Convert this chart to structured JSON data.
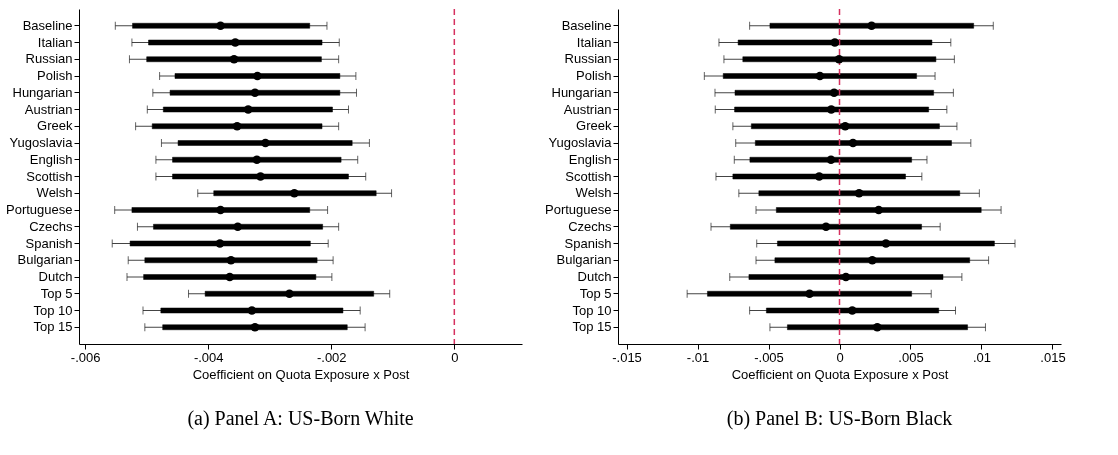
{
  "chart_data": [
    {
      "type": "box",
      "orientation": "horizontal",
      "title": "(a) Panel A: US-Born White",
      "xlabel": "Coefficient on Quota Exposure x Post",
      "grid": false,
      "categories": [
        "Baseline",
        "Italian",
        "Russian",
        "Polish",
        "Hungarian",
        "Austrian",
        "Greek",
        "Yugoslavia",
        "English",
        "Scottish",
        "Welsh",
        "Portuguese",
        "Czechs",
        "Spanish",
        "Bulgarian",
        "Dutch",
        "Top 5",
        "Top 10",
        "Top 15"
      ],
      "boxes": [
        {
          "low": -0.00551,
          "q1": -0.00523,
          "median": -0.0038,
          "q3": -0.00235,
          "high": -0.00207
        },
        {
          "low": -0.00524,
          "q1": -0.00497,
          "median": -0.00356,
          "q3": -0.00215,
          "high": -0.00187
        },
        {
          "low": -0.00528,
          "q1": -0.005,
          "median": -0.00358,
          "q3": -0.00216,
          "high": -0.00188
        },
        {
          "low": -0.00479,
          "q1": -0.00454,
          "median": -0.0032,
          "q3": -0.00186,
          "high": -0.0016
        },
        {
          "low": -0.0049,
          "q1": -0.00462,
          "median": -0.00324,
          "q3": -0.00186,
          "high": -0.00159
        },
        {
          "low": -0.00499,
          "q1": -0.00473,
          "median": -0.00335,
          "q3": -0.00198,
          "high": -0.00172
        },
        {
          "low": -0.00518,
          "q1": -0.00491,
          "median": -0.00353,
          "q3": -0.00215,
          "high": -0.00188
        },
        {
          "low": -0.00476,
          "q1": -0.00449,
          "median": -0.00307,
          "q3": -0.00166,
          "high": -0.00138
        },
        {
          "low": -0.00485,
          "q1": -0.00458,
          "median": -0.00321,
          "q3": -0.00184,
          "high": -0.00157
        },
        {
          "low": -0.00485,
          "q1": -0.00458,
          "median": -0.00315,
          "q3": -0.00172,
          "high": -0.00144
        },
        {
          "low": -0.00417,
          "q1": -0.00391,
          "median": -0.0026,
          "q3": -0.00127,
          "high": -0.00102
        },
        {
          "low": -0.00552,
          "q1": -0.00524,
          "median": -0.0038,
          "q3": -0.00235,
          "high": -0.00206
        },
        {
          "low": -0.00515,
          "q1": -0.00489,
          "median": -0.00352,
          "q3": -0.00214,
          "high": -0.00188
        },
        {
          "low": -0.00556,
          "q1": -0.00527,
          "median": -0.00381,
          "q3": -0.00234,
          "high": -0.00205
        },
        {
          "low": -0.0053,
          "q1": -0.00503,
          "median": -0.00363,
          "q3": -0.00223,
          "high": -0.00197
        },
        {
          "low": -0.00532,
          "q1": -0.00505,
          "median": -0.00365,
          "q3": -0.00225,
          "high": -0.00199
        },
        {
          "low": -0.00432,
          "q1": -0.00405,
          "median": -0.00268,
          "q3": -0.00131,
          "high": -0.00105
        },
        {
          "low": -0.00506,
          "q1": -0.00477,
          "median": -0.00329,
          "q3": -0.00181,
          "high": -0.00153
        },
        {
          "low": -0.00503,
          "q1": -0.00474,
          "median": -0.00324,
          "q3": -0.00174,
          "high": -0.00145
        }
      ],
      "xlim": [
        -0.0061,
        0.0011
      ],
      "xticks": [
        {
          "value": -0.006,
          "label": "-.006"
        },
        {
          "value": -0.004,
          "label": "-.004"
        },
        {
          "value": -0.002,
          "label": "-.002"
        },
        0
      ],
      "ref_lines": [
        {
          "axis": "x",
          "value": 0,
          "color": "#d6305f",
          "line_style": "dashed"
        }
      ]
    },
    {
      "type": "box",
      "orientation": "horizontal",
      "title": "(b) Panel B: US-Born Black",
      "xlabel": "Coefficient on Quota Exposure x Post",
      "grid": false,
      "categories": [
        "Baseline",
        "Italian",
        "Russian",
        "Polish",
        "Hungarian",
        "Austrian",
        "Greek",
        "Yugoslavia",
        "English",
        "Scottish",
        "Welsh",
        "Portuguese",
        "Czechs",
        "Spanish",
        "Bulgarian",
        "Dutch",
        "Top 5",
        "Top 10",
        "Top 15"
      ],
      "boxes": [
        {
          "low": -0.00633,
          "q1": -0.0049,
          "median": 0.00226,
          "q3": 0.00945,
          "high": 0.01083
        },
        {
          "low": -0.00849,
          "q1": -0.00714,
          "median": -0.00033,
          "q3": 0.00651,
          "high": 0.00784
        },
        {
          "low": -0.00814,
          "q1": -0.00681,
          "median": -3e-05,
          "q3": 0.00679,
          "high": 0.00809
        },
        {
          "low": -0.00952,
          "q1": -0.00819,
          "median": -0.00138,
          "q3": 0.00543,
          "high": 0.00673
        },
        {
          "low": -0.00877,
          "q1": -0.00736,
          "median": -0.00038,
          "q3": 0.00663,
          "high": 0.00802
        },
        {
          "low": -0.00875,
          "q1": -0.00739,
          "median": -0.00058,
          "q3": 0.00628,
          "high": 0.00756
        },
        {
          "low": -0.00751,
          "q1": -0.00621,
          "median": 0.0004,
          "q3": 0.00704,
          "high": 0.00827
        },
        {
          "low": -0.00731,
          "q1": -0.00593,
          "median": 0.00095,
          "q3": 0.00789,
          "high": 0.00925
        },
        {
          "low": -0.00741,
          "q1": -0.00631,
          "median": -0.0006,
          "q3": 0.00508,
          "high": 0.00616
        },
        {
          "low": -0.0087,
          "q1": -0.00751,
          "median": -0.00143,
          "q3": 0.00465,
          "high": 0.0058
        },
        {
          "low": -0.00709,
          "q1": -0.00568,
          "median": 0.00138,
          "q3": 0.00847,
          "high": 0.00985
        },
        {
          "low": -0.00588,
          "q1": -0.00445,
          "median": 0.00276,
          "q3": 0.00998,
          "high": 0.01138
        },
        {
          "low": -0.00905,
          "q1": -0.00769,
          "median": -0.00095,
          "q3": 0.00578,
          "high": 0.00709
        },
        {
          "low": -0.00583,
          "q1": -0.00437,
          "median": 0.00327,
          "q3": 0.01091,
          "high": 0.01236
        },
        {
          "low": -0.00588,
          "q1": -0.00455,
          "median": 0.00231,
          "q3": 0.00917,
          "high": 0.0105
        },
        {
          "low": -0.00773,
          "q1": -0.00638,
          "median": 0.00045,
          "q3": 0.00729,
          "high": 0.00862
        },
        {
          "low": -0.01073,
          "q1": -0.0093,
          "median": -0.00211,
          "q3": 0.00508,
          "high": 0.00646
        },
        {
          "low": -0.00633,
          "q1": -0.00515,
          "median": 0.0009,
          "q3": 0.00699,
          "high": 0.00817
        },
        {
          "low": -0.0049,
          "q1": -0.00367,
          "median": 0.00266,
          "q3": 0.00902,
          "high": 0.01028
        }
      ],
      "xlim": [
        -0.0156,
        0.0156
      ],
      "xticks": [
        {
          "value": -0.015,
          "label": "-.015"
        },
        {
          "value": -0.01,
          "label": "-.01"
        },
        {
          "value": -0.005,
          "label": "-.005"
        },
        0,
        {
          "value": 0.005,
          "label": ".005"
        },
        {
          "value": 0.01,
          "label": ".01"
        },
        {
          "value": 0.015,
          "label": ".015"
        }
      ],
      "ref_lines": [
        {
          "axis": "x",
          "value": 0,
          "color": "#d6305f",
          "line_style": "dashed"
        }
      ]
    }
  ]
}
